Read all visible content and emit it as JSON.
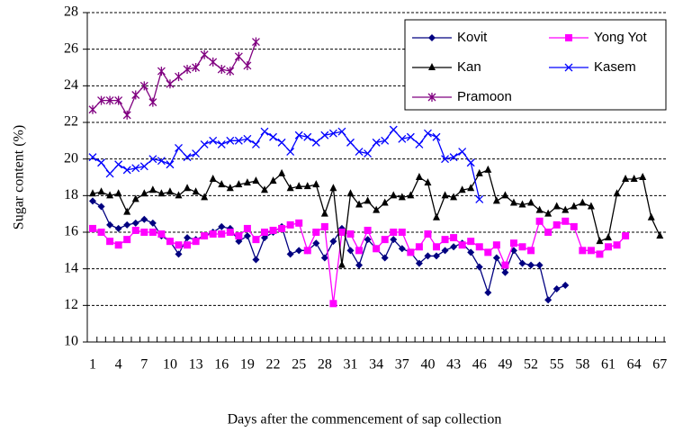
{
  "chart_data": {
    "type": "line",
    "y_label": "Sugar content (%)",
    "x_label": "Days after the commencement of sap collection",
    "categories": [
      "1",
      null,
      null,
      "4",
      null,
      null,
      "7",
      null,
      null,
      "10",
      null,
      null,
      "13",
      null,
      null,
      "16",
      null,
      null,
      "19",
      null,
      null,
      "22",
      null,
      null,
      "25",
      null,
      null,
      "28",
      null,
      null,
      "31",
      null,
      null,
      "34",
      null,
      null,
      "37",
      null,
      null,
      "40",
      null,
      null,
      "43",
      null,
      null,
      "46",
      null,
      null,
      "49",
      null,
      null,
      "52",
      null,
      null,
      "55",
      null,
      null,
      "58",
      null,
      null,
      "61",
      null,
      null,
      "64",
      null,
      null,
      "67"
    ],
    "ylim": [
      10,
      28
    ],
    "yticks": [
      10,
      12,
      14,
      16,
      18,
      20,
      22,
      24,
      26,
      28
    ],
    "grid": true,
    "legend": "upper right",
    "series": [
      {
        "name": "Kovit",
        "color": "#000080",
        "marker": "diamond",
        "values": [
          17.7,
          17.4,
          16.4,
          16.2,
          16.4,
          16.5,
          16.7,
          16.5,
          15.8,
          15.5,
          14.8,
          15.7,
          15.6,
          15.8,
          16.0,
          16.3,
          16.2,
          15.5,
          15.8,
          14.5,
          15.7,
          16.0,
          16.3,
          14.8,
          15.0,
          15.0,
          15.4,
          14.6,
          15.5,
          16.2,
          15.0,
          14.2,
          15.6,
          15.1,
          14.6,
          15.6,
          15.1,
          14.9,
          14.3,
          14.7,
          14.7,
          15.0,
          15.2,
          15.4,
          14.9,
          14.1,
          12.7,
          14.6,
          13.8,
          15.0,
          14.3,
          14.2,
          14.2,
          12.3,
          12.9,
          13.1,
          null,
          null,
          null,
          null,
          null,
          null,
          null,
          null,
          null,
          null,
          null
        ]
      },
      {
        "name": "Yong Yot",
        "color": "#ff00ff",
        "marker": "square",
        "values": [
          16.2,
          16.0,
          15.5,
          15.3,
          15.6,
          16.1,
          16.0,
          16.0,
          15.9,
          15.5,
          15.3,
          15.3,
          15.5,
          15.8,
          15.9,
          15.9,
          16.0,
          15.8,
          16.2,
          15.6,
          16.0,
          16.1,
          16.2,
          16.4,
          16.5,
          15.0,
          16.0,
          16.3,
          12.1,
          16.0,
          15.9,
          15.0,
          16.1,
          15.1,
          15.6,
          16.0,
          16.0,
          14.9,
          15.2,
          15.9,
          15.2,
          15.6,
          15.7,
          15.3,
          15.5,
          15.2,
          14.9,
          15.3,
          14.2,
          15.4,
          15.2,
          15.0,
          16.6,
          16.0,
          16.4,
          16.6,
          16.3,
          15.0,
          15.0,
          14.8,
          15.2,
          15.3,
          15.8,
          null,
          null,
          null,
          null
        ]
      },
      {
        "name": "Kan",
        "color": "#000000",
        "marker": "triangle",
        "values": [
          18.1,
          18.2,
          18.0,
          18.1,
          17.1,
          17.8,
          18.1,
          18.3,
          18.1,
          18.2,
          18.0,
          18.4,
          18.2,
          17.9,
          18.9,
          18.6,
          18.4,
          18.6,
          18.7,
          18.8,
          18.3,
          18.8,
          19.2,
          18.4,
          18.5,
          18.5,
          18.6,
          17.0,
          18.4,
          14.2,
          18.1,
          17.5,
          17.7,
          17.2,
          17.6,
          18.0,
          17.9,
          18.0,
          19.0,
          18.7,
          16.8,
          18.0,
          17.9,
          18.3,
          18.4,
          19.2,
          19.4,
          17.7,
          18.0,
          17.6,
          17.5,
          17.6,
          17.2,
          17.0,
          17.4,
          17.2,
          17.4,
          17.6,
          17.4,
          15.5,
          15.7,
          18.1,
          18.9,
          18.9,
          19.0,
          16.8,
          15.8
        ]
      },
      {
        "name": "Kasem",
        "color": "#0000ff",
        "marker": "x",
        "values": [
          20.1,
          19.8,
          19.2,
          19.7,
          19.4,
          19.5,
          19.6,
          20.0,
          19.9,
          19.7,
          20.6,
          20.1,
          20.3,
          20.8,
          21.0,
          20.8,
          21.0,
          21.0,
          21.1,
          20.8,
          21.5,
          21.2,
          20.9,
          20.4,
          21.3,
          21.2,
          20.9,
          21.3,
          21.4,
          21.5,
          20.9,
          20.4,
          20.3,
          20.9,
          21.0,
          21.6,
          21.1,
          21.2,
          20.8,
          21.4,
          21.2,
          20.0,
          20.1,
          20.4,
          19.8,
          17.8,
          null,
          null,
          null,
          null,
          null,
          null,
          null,
          null,
          null,
          null,
          null,
          null,
          null,
          null,
          null,
          null,
          null,
          null,
          null,
          null,
          null
        ]
      },
      {
        "name": "Pramoon",
        "color": "#800080",
        "marker": "star",
        "values": [
          22.7,
          23.2,
          23.2,
          23.2,
          22.4,
          23.5,
          24.0,
          23.1,
          24.8,
          24.1,
          24.5,
          24.9,
          25.0,
          25.7,
          25.3,
          24.9,
          24.8,
          25.6,
          25.1,
          26.4,
          null,
          null,
          null,
          null,
          null,
          null,
          null,
          null,
          null,
          null,
          null,
          null,
          null,
          null,
          null,
          null,
          null,
          null,
          null,
          null,
          null,
          null,
          null,
          null,
          null,
          null,
          null,
          null,
          null,
          null,
          null,
          null,
          null,
          null,
          null,
          null,
          null,
          null,
          null,
          null,
          null,
          null,
          null,
          null,
          null,
          null,
          null
        ]
      }
    ]
  }
}
